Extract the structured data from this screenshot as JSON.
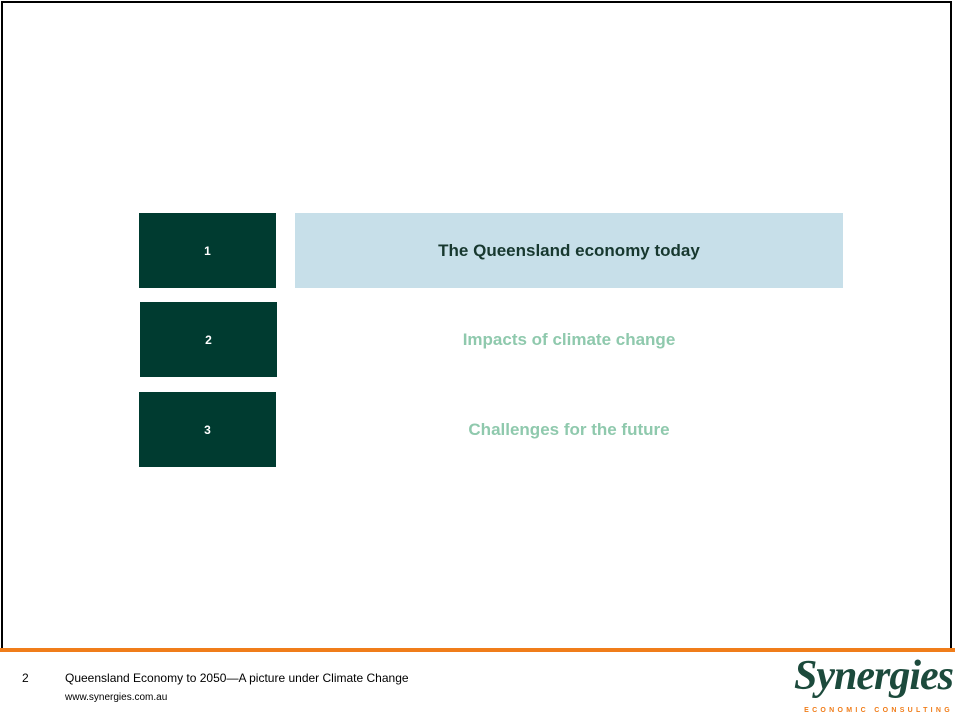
{
  "agenda": [
    {
      "number": "1",
      "title": "The Queensland economy today",
      "active": true
    },
    {
      "number": "2",
      "title": "Impacts of climate change",
      "active": false
    },
    {
      "number": "3",
      "title": "Challenges for the future",
      "active": false
    }
  ],
  "footer": {
    "page": "2",
    "title": "Queensland Economy to 2050—A picture under Climate Change",
    "url": "www.synergies.com.au"
  },
  "logo": {
    "name": "Synergies",
    "tagline": "ECONOMIC CONSULTING"
  }
}
